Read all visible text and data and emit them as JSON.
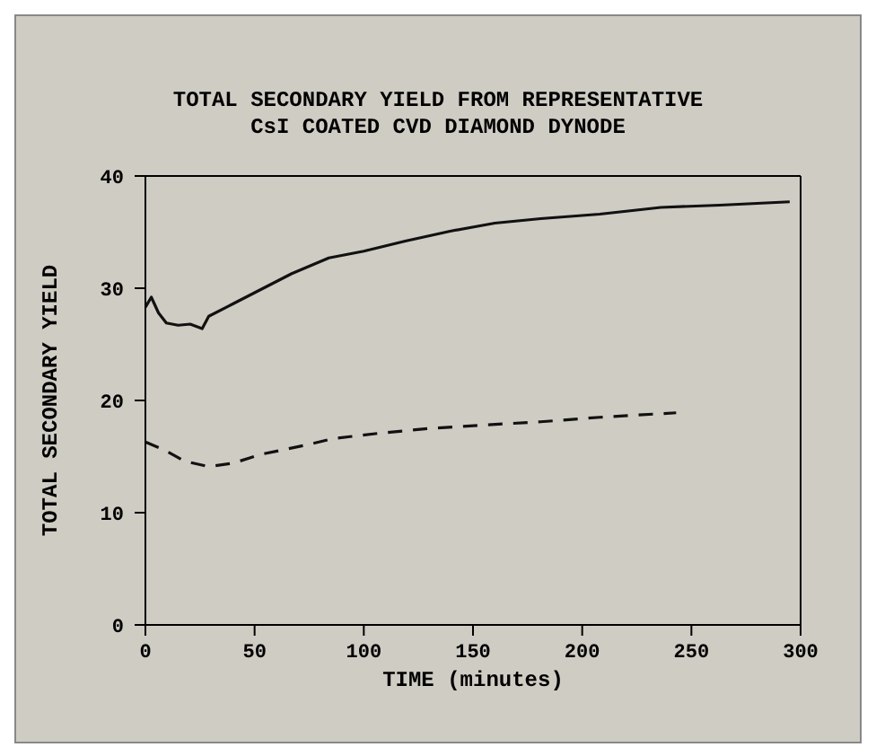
{
  "chart_data": {
    "type": "line",
    "title": "TOTAL SECONDARY YIELD FROM REPRESENTATIVE\nCsI COATED CVD DIAMOND DYNODE",
    "xlabel": "TIME (minutes)",
    "ylabel": "TOTAL SECONDARY YIELD",
    "xlim": [
      0,
      300
    ],
    "xticks": [
      0,
      50,
      100,
      150,
      200,
      250,
      300
    ],
    "ylim": [
      0,
      40
    ],
    "yticks": [
      0,
      10,
      20,
      30,
      40
    ],
    "legend": false,
    "marker": "none",
    "series": [
      {
        "color": "#111111",
        "line_style": "solid",
        "x": [
          0,
          2.7,
          6,
          9.6,
          15,
          20.5,
          26,
          29,
          40,
          51,
          67,
          84,
          100,
          119,
          140,
          160,
          181,
          208,
          236,
          263,
          295
        ],
        "values": [
          28.3,
          29.2,
          27.8,
          26.9,
          26.7,
          26.8,
          26.4,
          27.5,
          28.6,
          29.7,
          31.3,
          32.7,
          33.3,
          34.2,
          35.1,
          35.8,
          36.2,
          36.6,
          37.2,
          37.4,
          37.7
        ]
      },
      {
        "color": "#111111",
        "line_style": "dashed",
        "x": [
          0,
          9.6,
          17.8,
          29,
          40,
          53,
          73,
          86,
          108,
          130,
          154,
          181,
          208,
          243
        ],
        "values": [
          16.3,
          15.5,
          14.6,
          14.1,
          14.4,
          15.2,
          16.0,
          16.6,
          17.1,
          17.5,
          17.8,
          18.1,
          18.5,
          18.9
        ]
      }
    ]
  }
}
